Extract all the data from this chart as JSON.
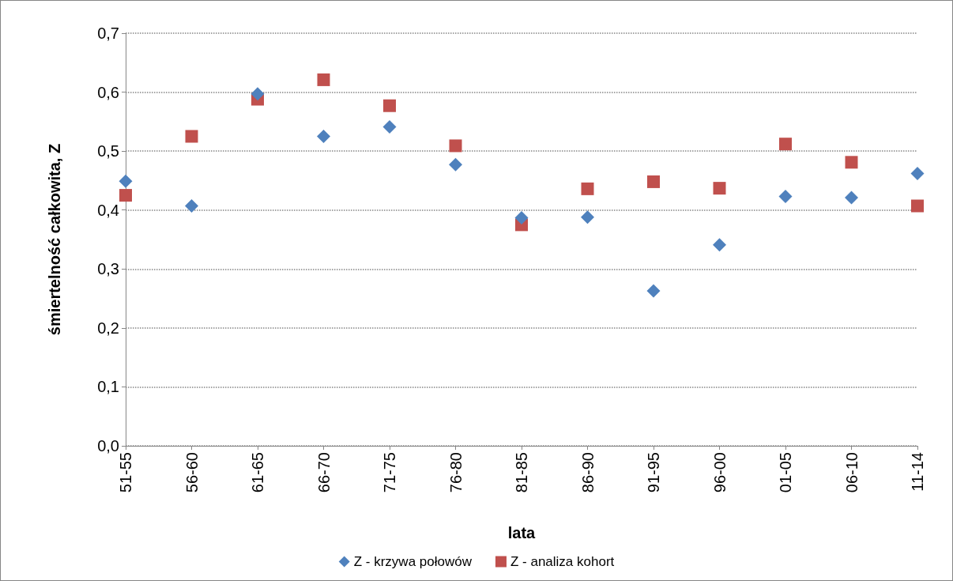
{
  "chart_data": {
    "type": "scatter",
    "xlabel": "lata",
    "ylabel": "śmiertelność całkowita, Z",
    "categories": [
      "51-55",
      "56-60",
      "61-65",
      "66-70",
      "71-75",
      "76-80",
      "81-85",
      "86-90",
      "91-95",
      "96-00",
      "01-05",
      "06-10",
      "11-14"
    ],
    "series": [
      {
        "name": "Z - krzywa połowów",
        "color": "#4f81bd",
        "marker": "diamond",
        "values": [
          0.449,
          0.407,
          0.597,
          0.525,
          0.541,
          0.477,
          0.387,
          0.388,
          0.263,
          0.341,
          0.423,
          0.421,
          0.462
        ]
      },
      {
        "name": "Z - analiza kohort",
        "color": "#c0504d",
        "marker": "square",
        "values": [
          0.425,
          0.525,
          0.588,
          0.621,
          0.577,
          0.509,
          0.375,
          0.436,
          0.448,
          0.437,
          0.512,
          0.481,
          0.407
        ]
      }
    ],
    "ylim": [
      0,
      0.7
    ],
    "yticks": [
      {
        "value": 0,
        "label": "0,0"
      },
      {
        "value": 0.1,
        "label": "0,1"
      },
      {
        "value": 0.2,
        "label": "0,2"
      },
      {
        "value": 0.3,
        "label": "0,3"
      },
      {
        "value": 0.4,
        "label": "0,4"
      },
      {
        "value": 0.5,
        "label": "0,5"
      },
      {
        "value": 0.6,
        "label": "0,6"
      },
      {
        "value": 0.7,
        "label": "0,7"
      }
    ],
    "grid": "y",
    "legend": "bottom"
  }
}
